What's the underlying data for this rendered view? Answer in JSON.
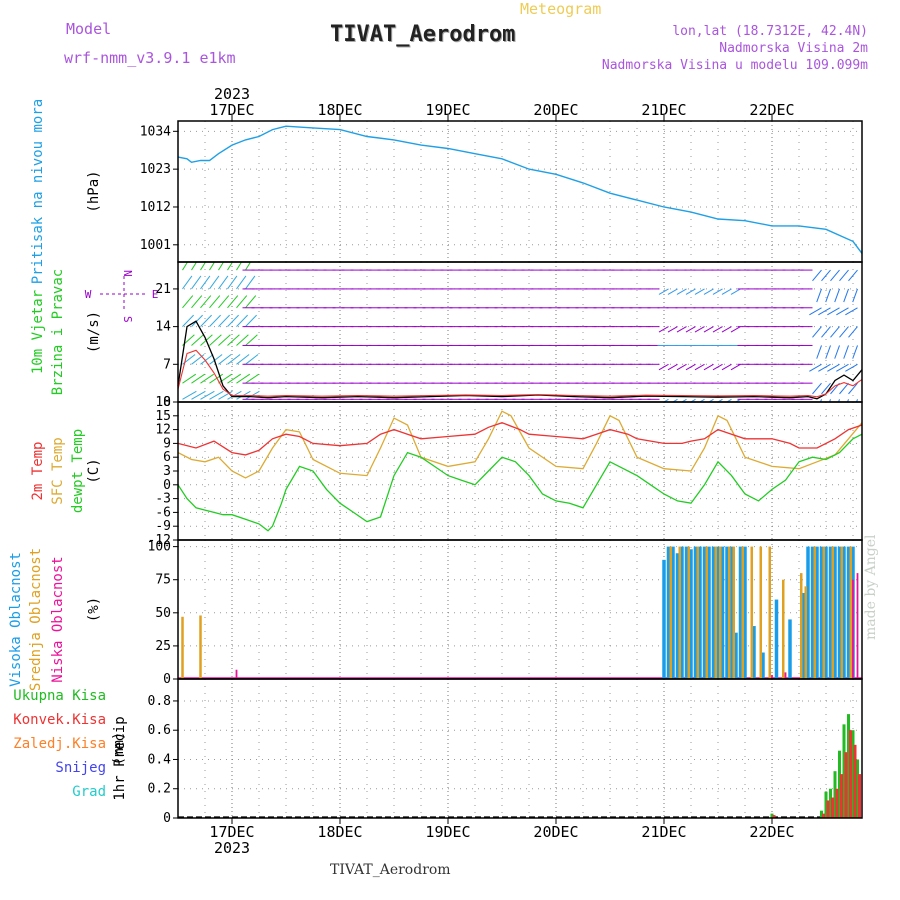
{
  "header": {
    "model_label": "Model",
    "model_name": "wrf-nmm_v3.9.1 e1km",
    "title": "TIVAT_Aerodrom",
    "subtitle": "Meteogram",
    "location": "lon,lat (18.7312E, 42.4N)",
    "elevation": "Nadmorska Visina 2m",
    "model_elevation": "Nadmorska Visina u modelu 109.099m",
    "footer": "TIVAT_Aerodrom",
    "credit": "made by Angel"
  },
  "time_axis": {
    "year": "2023",
    "days": [
      "17DEC",
      "18DEC",
      "19DEC",
      "20DEC",
      "21DEC",
      "22DEC"
    ],
    "day_hours": [
      0,
      24,
      48,
      72,
      96,
      120
    ],
    "range_hours": [
      -12,
      140
    ]
  },
  "colors": {
    "pressure": "#1fa0e6",
    "wind": "#22cc22",
    "wind_barb": "#9900cc",
    "temp2m": "#ee3333",
    "sfctemp": "#ddaa33",
    "dewpt": "#22cc22",
    "cloud_high": "#1a9de8",
    "cloud_mid": "#e0a020",
    "cloud_low": "#ee1199",
    "precip_total": "#22bb22",
    "precip_conv": "#ee3333",
    "precip_frz": "#ff7f27",
    "snow": "#4444ee",
    "graupel": "#22cccc",
    "grid": "#999999"
  },
  "chart_data": [
    {
      "type": "line",
      "name": "pressure",
      "ylabel": "Pritisak na nivou mora",
      "unit": "(hPa)",
      "ylim": [
        996,
        1037
      ],
      "yticks": [
        1001,
        1012,
        1023,
        1034
      ],
      "x": [
        -12,
        -10,
        -9,
        -7,
        -5,
        -3,
        0,
        3,
        6,
        9,
        12,
        18,
        24,
        30,
        36,
        42,
        48,
        54,
        60,
        66,
        72,
        78,
        84,
        90,
        96,
        102,
        108,
        114,
        120,
        126,
        132,
        138,
        140
      ],
      "values": [
        1026.5,
        1026.0,
        1025.0,
        1025.5,
        1025.5,
        1027.5,
        1030.0,
        1031.5,
        1032.5,
        1034.5,
        1035.5,
        1035.0,
        1034.5,
        1032.5,
        1031.5,
        1030.0,
        1029.0,
        1027.5,
        1026.0,
        1023.0,
        1021.5,
        1019.0,
        1016.0,
        1014.0,
        1012.0,
        1010.5,
        1008.5,
        1008.0,
        1006.5,
        1006.5,
        1005.5,
        1002.0,
        998.5
      ]
    },
    {
      "type": "line",
      "name": "wind",
      "ylabel": "10m Vjetar",
      "ylabel2": "Brzina i Pravac",
      "unit": "(m/s)",
      "compass": [
        "N",
        "W",
        "E",
        "S"
      ],
      "ylim": [
        0,
        26
      ],
      "yticks": [
        0,
        7,
        14,
        21
      ],
      "x": [
        -12,
        -10,
        -8,
        -6,
        -4,
        -2,
        0,
        4,
        8,
        12,
        20,
        28,
        36,
        44,
        52,
        60,
        68,
        76,
        84,
        92,
        100,
        108,
        116,
        120,
        124,
        128,
        130,
        132,
        134,
        136,
        138,
        140
      ],
      "values": [
        3,
        14,
        15,
        12,
        8,
        3,
        1,
        1,
        0.8,
        1,
        0.8,
        1,
        0.8,
        1,
        1.2,
        1,
        1.3,
        1,
        0.8,
        1.1,
        1,
        0.9,
        1,
        0.9,
        0.8,
        1,
        0.6,
        1.5,
        4,
        5,
        4,
        6
      ]
    },
    {
      "type": "line",
      "name": "temperature",
      "ylabel": "2m Temp",
      "ylabel2": "SFC Temp",
      "ylabel3": "dewpt Temp",
      "unit": "(C)",
      "ylim": [
        -12,
        18
      ],
      "yticks": [
        -12,
        -9,
        -6,
        -3,
        0,
        3,
        6,
        9,
        12,
        15,
        18
      ],
      "series": [
        {
          "name": "2m Temp",
          "x": [
            -12,
            -8,
            -4,
            0,
            3,
            6,
            9,
            12,
            15,
            18,
            24,
            30,
            33,
            36,
            39,
            42,
            48,
            54,
            57,
            60,
            64,
            66,
            72,
            78,
            81,
            84,
            88,
            90,
            96,
            100,
            102,
            105,
            108,
            111,
            114,
            120,
            124,
            126,
            130,
            134,
            137,
            140
          ],
          "values": [
            9,
            8,
            9.5,
            7,
            6.5,
            7.5,
            10,
            11,
            10.5,
            9,
            8.5,
            9,
            11,
            12,
            11,
            10,
            10.5,
            11,
            12.5,
            13.5,
            12,
            11,
            10.5,
            10,
            11,
            12,
            11,
            10,
            9,
            9,
            9.5,
            10,
            12,
            11,
            10,
            10,
            9,
            8,
            8,
            10,
            12,
            13
          ]
        },
        {
          "name": "SFC Temp",
          "x": [
            -12,
            -9,
            -6,
            -3,
            0,
            3,
            6,
            9,
            12,
            15,
            18,
            24,
            30,
            33,
            36,
            39,
            42,
            48,
            54,
            57,
            60,
            62,
            66,
            72,
            78,
            81,
            84,
            86,
            90,
            96,
            102,
            105,
            108,
            110,
            114,
            120,
            126,
            130,
            134,
            137,
            140
          ],
          "values": [
            7,
            5.5,
            5,
            6,
            3,
            1.5,
            3,
            8,
            12,
            11.5,
            5.5,
            2.5,
            2,
            8,
            14.5,
            13,
            6,
            4,
            5,
            10,
            16,
            15,
            8,
            4,
            3.5,
            9,
            15,
            14,
            6,
            3.5,
            3,
            8,
            15,
            14,
            6,
            4,
            3.5,
            5,
            6.5,
            10,
            13.5
          ]
        },
        {
          "name": "dewpt Temp",
          "x": [
            -12,
            -10,
            -8,
            -6,
            -4,
            -2,
            0,
            3,
            6,
            8,
            9,
            11,
            12,
            15,
            18,
            21,
            24,
            27,
            30,
            33,
            36,
            39,
            42,
            45,
            48,
            51,
            54,
            57,
            60,
            63,
            66,
            69,
            72,
            75,
            78,
            81,
            84,
            87,
            90,
            93,
            96,
            99,
            102,
            105,
            108,
            111,
            114,
            117,
            120,
            123,
            126,
            129,
            132,
            135,
            138,
            140
          ],
          "values": [
            0,
            -3,
            -5,
            -5.5,
            -6,
            -6.5,
            -6.5,
            -7.5,
            -8.5,
            -10,
            -9,
            -4,
            -1,
            4,
            3,
            -1,
            -4,
            -6,
            -8,
            -7,
            2,
            7,
            6,
            4,
            2,
            1,
            0,
            3,
            6,
            5,
            2,
            -2,
            -3.5,
            -4,
            -5,
            0,
            5,
            3.5,
            2,
            0,
            -2,
            -3.5,
            -4,
            0,
            5,
            2,
            -2,
            -3.5,
            -1,
            1,
            5,
            6,
            5.5,
            7,
            10,
            11
          ]
        }
      ]
    },
    {
      "type": "bar",
      "name": "cloud_cover",
      "ylabel": "Visoka Oblacnost",
      "ylabel2": "Srednja Oblacnost",
      "ylabel3": "Niska Oblacnost",
      "unit": "(%)",
      "ylim": [
        0,
        105
      ],
      "yticks": [
        0,
        25,
        50,
        75,
        100
      ],
      "series": [
        {
          "name": "Visoka Oblacnost",
          "x": [
            96,
            97,
            98,
            99,
            100,
            101,
            102,
            103,
            104,
            105,
            106,
            107,
            108,
            109,
            110,
            111,
            112,
            113,
            114,
            116,
            118,
            121,
            124,
            127,
            128,
            129,
            130,
            131,
            132,
            133,
            134,
            135,
            136,
            137,
            138
          ],
          "values": [
            90,
            100,
            100,
            95,
            100,
            100,
            98,
            100,
            100,
            100,
            100,
            100,
            100,
            100,
            100,
            100,
            35,
            100,
            100,
            40,
            20,
            60,
            45,
            65,
            100,
            100,
            100,
            100,
            100,
            100,
            100,
            100,
            100,
            100,
            100
          ]
        },
        {
          "name": "Srednja Oblacnost",
          "x": [
            -11,
            -7,
            97.5,
            99.5,
            101.5,
            103.5,
            105.5,
            107.5,
            108.5,
            110.5,
            111.5,
            113.5,
            115.5,
            117.5,
            119.5,
            122.5,
            126.5,
            127.5,
            129.5,
            131.5,
            133.5,
            135.5,
            137.5
          ],
          "values": [
            47,
            48,
            100,
            100,
            100,
            100,
            100,
            100,
            100,
            100,
            100,
            100,
            100,
            100,
            100,
            75,
            80,
            70,
            100,
            100,
            100,
            100,
            100
          ]
        },
        {
          "name": "Niska Oblacnost",
          "x": [
            1,
            120,
            123,
            138,
            139
          ],
          "values": [
            7,
            3,
            5,
            75,
            80
          ]
        }
      ]
    },
    {
      "type": "bar",
      "name": "precipitation",
      "ylabel": "1hr Precip",
      "unit": "(mm)",
      "legend": [
        "Ukupna Kisa",
        "Konvek.Kisa",
        "Zaledj.Kisa",
        "Snijeg",
        "Grad"
      ],
      "ylim": [
        0,
        0.95
      ],
      "yticks": [
        0,
        0.2,
        0.4,
        0.6,
        0.8
      ],
      "series": [
        {
          "name": "Ukupna Kisa",
          "x": [
            120,
            131,
            132,
            133,
            134,
            135,
            136,
            137,
            138,
            139
          ],
          "values": [
            0.03,
            0.05,
            0.18,
            0.2,
            0.32,
            0.46,
            0.64,
            0.71,
            0.6,
            0.4
          ]
        },
        {
          "name": "Konvek.Kisa",
          "x": [
            120,
            131,
            132,
            133,
            134,
            135,
            136,
            137,
            138,
            139
          ],
          "values": [
            0.02,
            0.03,
            0.12,
            0.14,
            0.2,
            0.3,
            0.45,
            0.6,
            0.5,
            0.3
          ]
        }
      ]
    }
  ]
}
